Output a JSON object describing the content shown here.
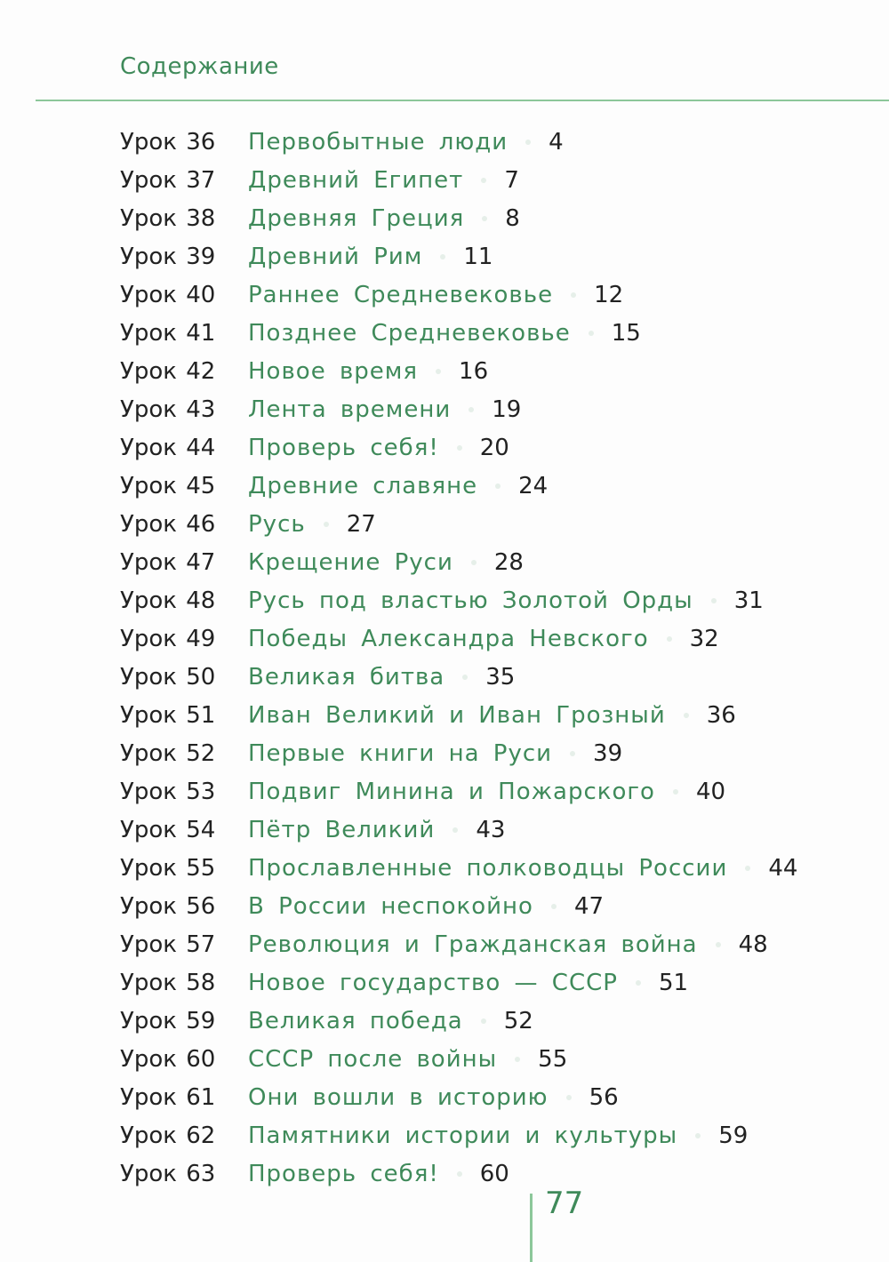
{
  "header": {
    "title": "Содержание"
  },
  "toc": [
    {
      "lesson": "Урок 36",
      "title": "Первобытные люди",
      "page": "4"
    },
    {
      "lesson": "Урок 37",
      "title": "Древний Египет",
      "page": "7"
    },
    {
      "lesson": "Урок 38",
      "title": "Древняя Греция",
      "page": "8"
    },
    {
      "lesson": "Урок 39",
      "title": "Древний Рим",
      "page": "11"
    },
    {
      "lesson": "Урок 40",
      "title": "Раннее Средневековье",
      "page": "12"
    },
    {
      "lesson": "Урок 41",
      "title": "Позднее Средневековье",
      "page": "15"
    },
    {
      "lesson": "Урок 42",
      "title": "Новое время",
      "page": "16"
    },
    {
      "lesson": "Урок 43",
      "title": "Лента времени",
      "page": "19"
    },
    {
      "lesson": "Урок 44",
      "title": "Проверь себя!",
      "page": "20"
    },
    {
      "lesson": "Урок 45",
      "title": "Древние славяне",
      "page": "24"
    },
    {
      "lesson": "Урок 46",
      "title": "Русь",
      "page": "27"
    },
    {
      "lesson": "Урок 47",
      "title": "Крещение Руси",
      "page": "28"
    },
    {
      "lesson": "Урок 48",
      "title": "Русь под властью Золотой Орды",
      "page": "31"
    },
    {
      "lesson": "Урок 49",
      "title": "Победы Александра Невского",
      "page": "32"
    },
    {
      "lesson": "Урок 50",
      "title": "Великая битва",
      "page": "35"
    },
    {
      "lesson": "Урок 51",
      "title": "Иван Великий и Иван Грозный",
      "page": "36"
    },
    {
      "lesson": "Урок 52",
      "title": "Первые книги на Руси",
      "page": "39"
    },
    {
      "lesson": "Урок 53",
      "title": "Подвиг Минина и Пожарского",
      "page": "40"
    },
    {
      "lesson": "Урок 54",
      "title": "Пётр Великий",
      "page": "43"
    },
    {
      "lesson": "Урок 55",
      "title": "Прославленные полководцы России",
      "page": "44"
    },
    {
      "lesson": "Урок 56",
      "title": "В России неспокойно",
      "page": "47"
    },
    {
      "lesson": "Урок 57",
      "title": "Революция и Гражданская война",
      "page": "48"
    },
    {
      "lesson": "Урок 58",
      "title": "Новое государство — СССР",
      "page": "51"
    },
    {
      "lesson": "Урок 59",
      "title": "Великая победа",
      "page": "52"
    },
    {
      "lesson": "Урок 60",
      "title": "СССР после войны",
      "page": "55"
    },
    {
      "lesson": "Урок 61",
      "title": "Они вошли в историю",
      "page": "56"
    },
    {
      "lesson": "Урок 62",
      "title": "Памятники истории и культуры",
      "page": "59"
    },
    {
      "lesson": "Урок 63",
      "title": "Проверь себя!",
      "page": "60"
    }
  ],
  "footer": {
    "page_number": "77"
  },
  "colors": {
    "accent": "#3f8a5a",
    "rule": "#8cc79a",
    "text": "#222222"
  }
}
